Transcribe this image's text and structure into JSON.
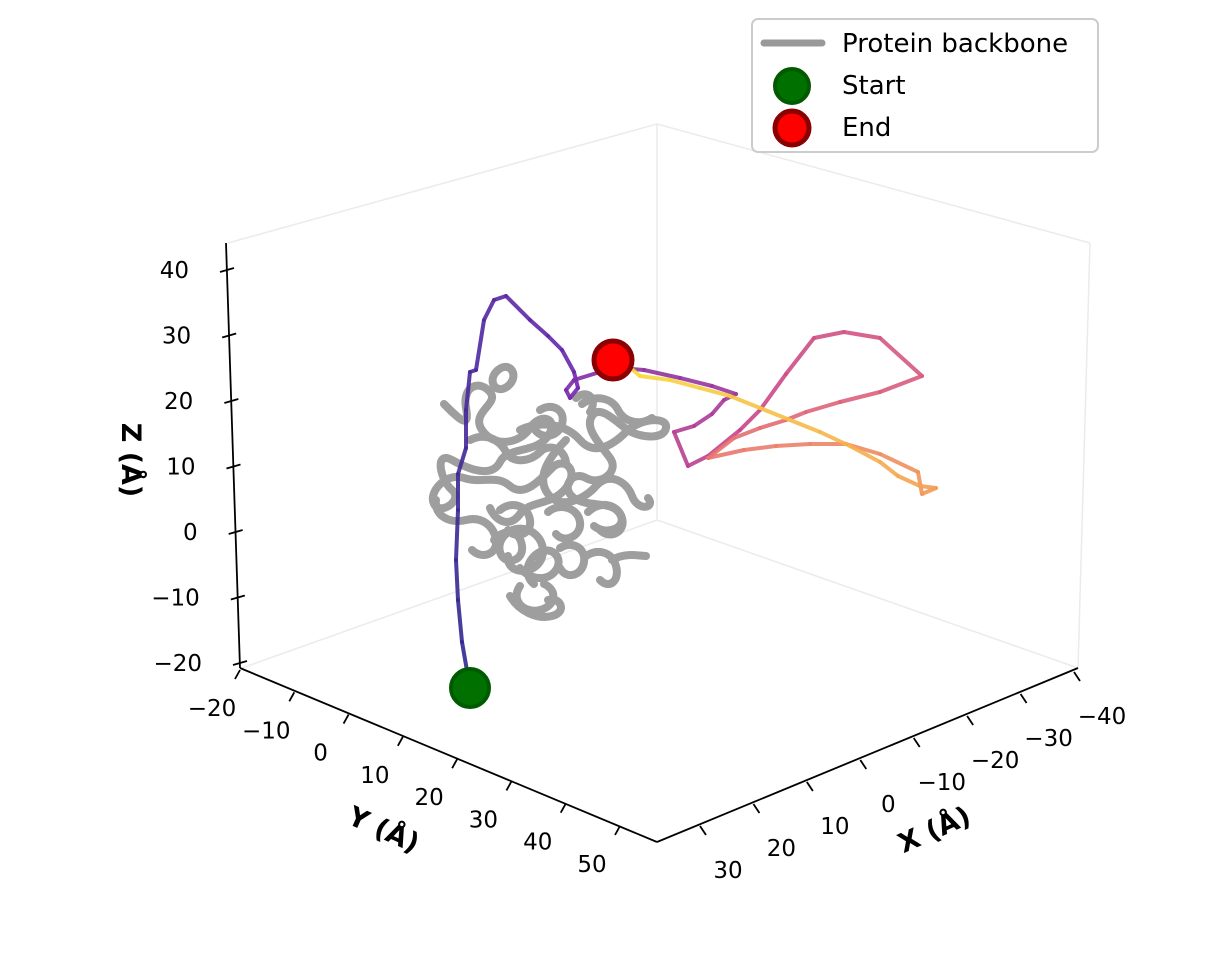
{
  "chart_data": {
    "type": "line",
    "projection": "3d",
    "x_axis": {
      "label": "X (Å)",
      "ticks": [
        -40,
        -30,
        -20,
        -10,
        0,
        10,
        20,
        30
      ],
      "range": [
        -40,
        30
      ]
    },
    "y_axis": {
      "label": "Y (Å)",
      "ticks": [
        -20,
        -10,
        0,
        10,
        20,
        30,
        40,
        50
      ],
      "range": [
        -20,
        50
      ]
    },
    "z_axis": {
      "label": "Z (Å)",
      "ticks": [
        -20,
        -10,
        0,
        10,
        20,
        30,
        40
      ],
      "range": [
        -20,
        40
      ]
    },
    "legend": {
      "position": "top-right",
      "entries": [
        {
          "label": "Protein backbone",
          "marker": "line",
          "color": "#999999"
        },
        {
          "label": "Start",
          "marker": "circle",
          "color": "#007000"
        },
        {
          "label": "End",
          "marker": "circle",
          "color": "#ff0000"
        }
      ]
    },
    "trajectory": {
      "colormap": "plasma",
      "start_color": "#2e2a8f",
      "end_color": "#f8e13a",
      "start_marker_color": "#007000",
      "end_marker_color": "#ff0000"
    },
    "backbone_color": "#999999"
  }
}
